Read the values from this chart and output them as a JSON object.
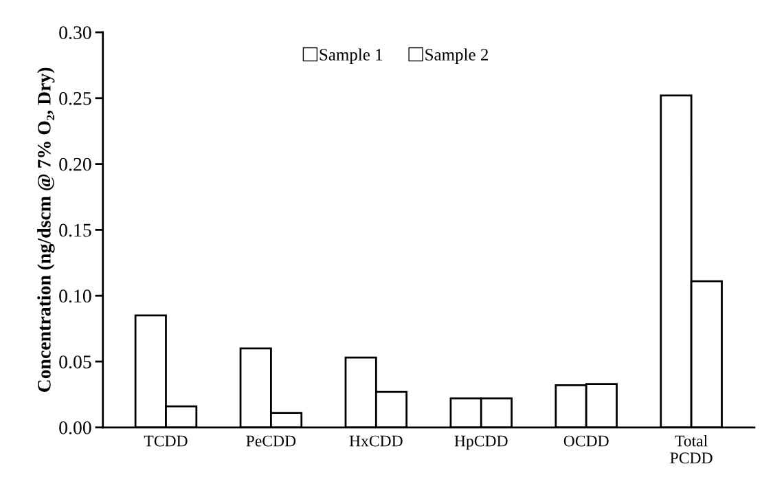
{
  "chart_data": {
    "type": "bar",
    "ylabel": "Concentration (ng/dscm @ 7% O₂, Dry)",
    "categories": [
      "TCDD",
      "PeCDD",
      "HxCDD",
      "HpCDD",
      "OCDD",
      "Total\nPCDD"
    ],
    "series": [
      {
        "name": "Sample 1",
        "color": "#ffffff",
        "values": [
          0.085,
          0.06,
          0.053,
          0.022,
          0.032,
          0.252
        ]
      },
      {
        "name": "Sample 2",
        "color": "#ffffff",
        "values": [
          0.016,
          0.011,
          0.027,
          0.022,
          0.033,
          0.111
        ]
      }
    ],
    "ylim": [
      0,
      0.3
    ],
    "yticks": [
      {
        "value": 0,
        "label": "0.00"
      },
      {
        "value": 0.05,
        "label": "0.05"
      },
      {
        "value": 0.1,
        "label": "0.10"
      },
      {
        "value": 0.15,
        "label": "0.15"
      },
      {
        "value": 0.2,
        "label": "0.20"
      },
      {
        "value": 0.25,
        "label": "0.25"
      },
      {
        "value": 0.3,
        "label": "0.30"
      }
    ],
    "legend": "top",
    "grid": false
  }
}
